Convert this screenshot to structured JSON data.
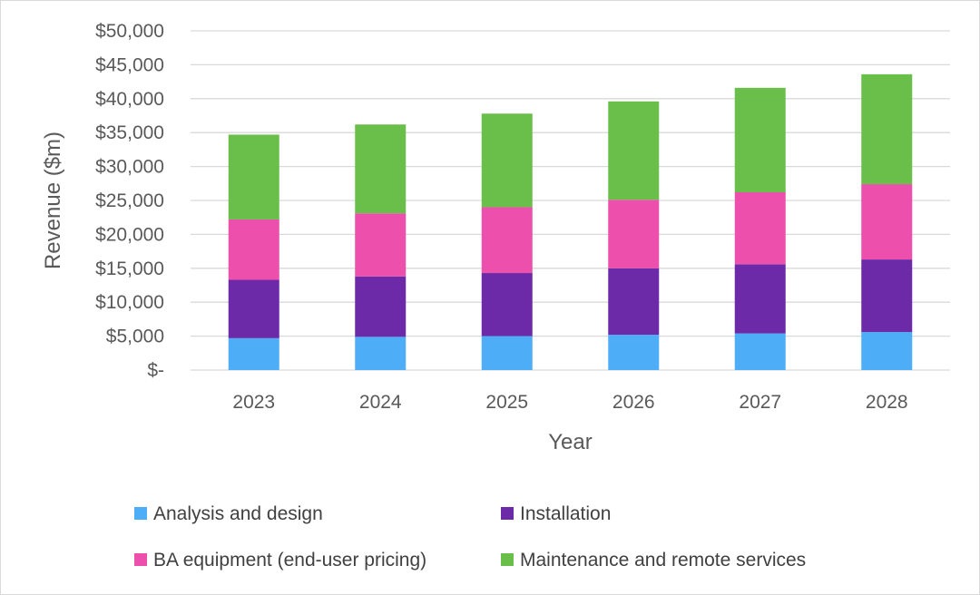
{
  "chart_data": {
    "type": "bar",
    "stacked": true,
    "title": "",
    "xlabel": "Year",
    "ylabel": "Revenue ($m)",
    "ylim": [
      0,
      50000
    ],
    "ytick_step": 5000,
    "ytick_labels": [
      "$-",
      "$5,000",
      "$10,000",
      "$15,000",
      "$20,000",
      "$25,000",
      "$30,000",
      "$35,000",
      "$40,000",
      "$45,000",
      "$50,000"
    ],
    "grid": true,
    "legend_position": "bottom",
    "categories": [
      "2023",
      "2024",
      "2025",
      "2026",
      "2027",
      "2028"
    ],
    "series": [
      {
        "name": "Analysis and design",
        "color": "#4daef7",
        "values": [
          4700,
          4900,
          5000,
          5200,
          5400,
          5600
        ]
      },
      {
        "name": "Installation",
        "color": "#6c2aa8",
        "values": [
          8600,
          8900,
          9300,
          9800,
          10200,
          10700
        ]
      },
      {
        "name": "BA equipment (end-user pricing)",
        "color": "#ec4fac",
        "values": [
          8900,
          9300,
          9700,
          10100,
          10600,
          11100
        ]
      },
      {
        "name": "Maintenance and remote services",
        "color": "#6abf4b",
        "values": [
          12500,
          13100,
          13800,
          14500,
          15400,
          16200
        ]
      }
    ]
  }
}
